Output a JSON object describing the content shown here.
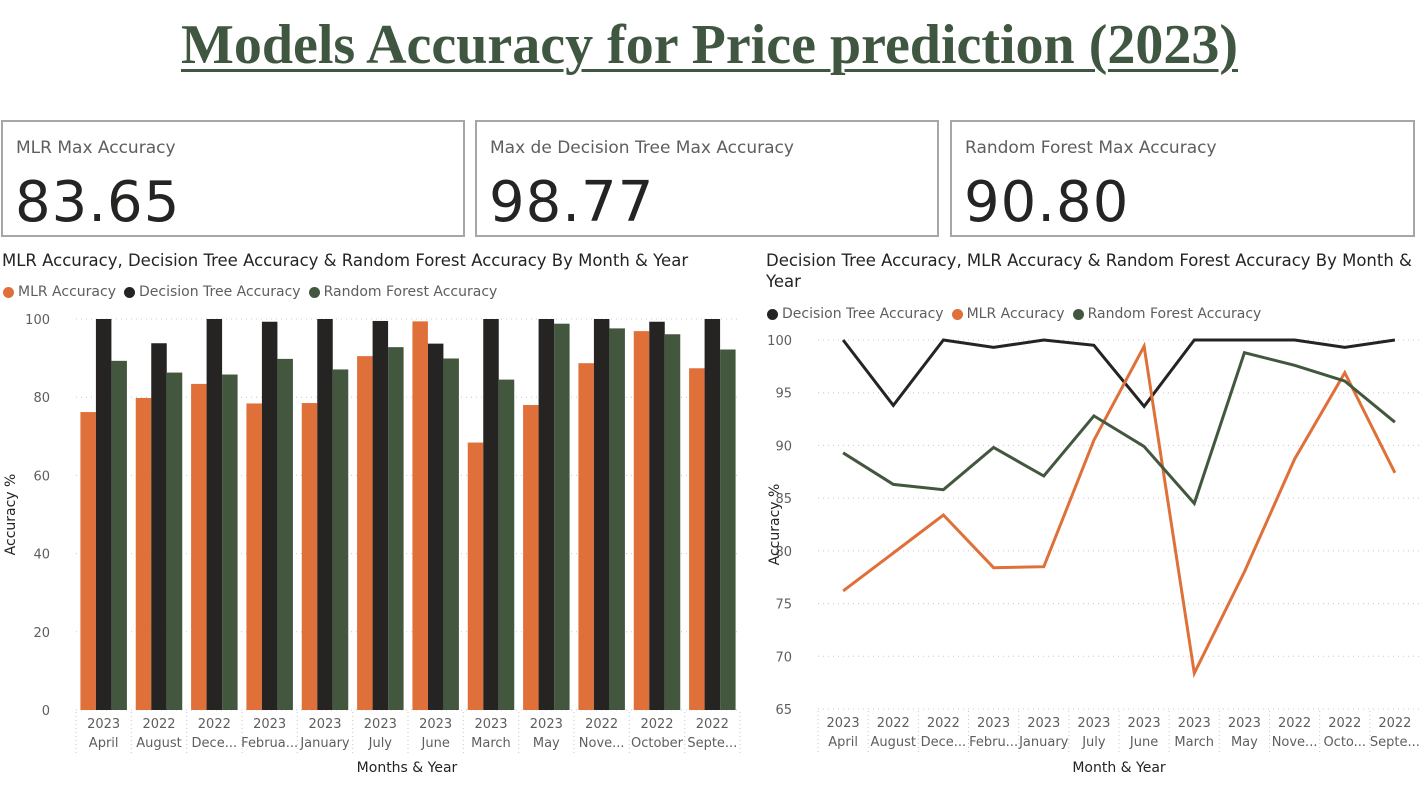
{
  "page": {
    "title": "Models Accuracy for Price prediction (2023)"
  },
  "cards": [
    {
      "label": "MLR Max Accuracy",
      "value": "83.65"
    },
    {
      "label": "Max de Decision Tree Max Accuracy",
      "value": "98.77"
    },
    {
      "label": "Random Forest Max Accuracy",
      "value": "90.80"
    }
  ],
  "colors": {
    "mlr": "#e0703a",
    "decision_tree": "#252423",
    "random_forest": "#43573f",
    "grid": "#c8c8c8"
  },
  "chart_data": [
    {
      "type": "bar",
      "title": "MLR Accuracy, Decision Tree Accuracy & Random Forest Accuracy By Month & Year",
      "xlabel": "Months & Year",
      "ylabel": "Accuracy %",
      "ylim": [
        0,
        100
      ],
      "yticks": [
        0,
        20,
        40,
        60,
        80,
        100
      ],
      "grid": true,
      "legend_position": "top-left",
      "categories": [
        {
          "year": "2023",
          "month": "April"
        },
        {
          "year": "2022",
          "month": "August"
        },
        {
          "year": "2022",
          "month": "Dece..."
        },
        {
          "year": "2023",
          "month": "Februa..."
        },
        {
          "year": "2023",
          "month": "January"
        },
        {
          "year": "2023",
          "month": "July"
        },
        {
          "year": "2023",
          "month": "June"
        },
        {
          "year": "2023",
          "month": "March"
        },
        {
          "year": "2023",
          "month": "May"
        },
        {
          "year": "2022",
          "month": "Nove..."
        },
        {
          "year": "2022",
          "month": "October"
        },
        {
          "year": "2022",
          "month": "Septe..."
        }
      ],
      "series": [
        {
          "name": "MLR Accuracy",
          "color": "#e0703a",
          "values": [
            76.2,
            79.8,
            83.4,
            78.4,
            78.5,
            90.5,
            99.4,
            68.4,
            78.0,
            88.7,
            96.9,
            87.4
          ]
        },
        {
          "name": "Decision Tree Accuracy",
          "color": "#252423",
          "values": [
            100,
            93.8,
            100,
            99.3,
            100,
            99.5,
            93.7,
            100,
            100,
            100,
            99.3,
            100
          ]
        },
        {
          "name": "Random Forest Accuracy",
          "color": "#43573f",
          "values": [
            89.3,
            86.3,
            85.8,
            89.8,
            87.1,
            92.8,
            89.9,
            84.5,
            98.8,
            97.6,
            96.1,
            92.2
          ]
        }
      ]
    },
    {
      "type": "line",
      "title": "Decision Tree Accuracy, MLR Accuracy & Random Forest Accuracy By Month &",
      "title_line2": "Year",
      "xlabel": "Month & Year",
      "ylabel": "Accuracy %",
      "ylim": [
        65,
        100
      ],
      "yticks": [
        65,
        70,
        75,
        80,
        85,
        90,
        95,
        100
      ],
      "grid": true,
      "legend_position": "top-left",
      "categories": [
        {
          "year": "2023",
          "month": "April"
        },
        {
          "year": "2022",
          "month": "August"
        },
        {
          "year": "2022",
          "month": "Dece..."
        },
        {
          "year": "2023",
          "month": "Febru..."
        },
        {
          "year": "2023",
          "month": "January"
        },
        {
          "year": "2023",
          "month": "July"
        },
        {
          "year": "2023",
          "month": "June"
        },
        {
          "year": "2023",
          "month": "March"
        },
        {
          "year": "2023",
          "month": "May"
        },
        {
          "year": "2022",
          "month": "Nove..."
        },
        {
          "year": "2022",
          "month": "Octo..."
        },
        {
          "year": "2022",
          "month": "Septe..."
        }
      ],
      "series": [
        {
          "name": "Decision Tree Accuracy",
          "color": "#252423",
          "values": [
            100,
            93.8,
            100,
            99.3,
            100,
            99.5,
            93.7,
            100,
            100,
            100,
            99.3,
            100
          ]
        },
        {
          "name": "MLR Accuracy",
          "color": "#e0703a",
          "values": [
            76.2,
            79.8,
            83.4,
            78.4,
            78.5,
            90.5,
            99.4,
            68.4,
            78.0,
            88.7,
            96.9,
            87.4
          ]
        },
        {
          "name": "Random Forest Accuracy",
          "color": "#43573f",
          "values": [
            89.3,
            86.3,
            85.8,
            89.8,
            87.1,
            92.8,
            89.9,
            84.5,
            98.8,
            97.6,
            96.1,
            92.2
          ]
        }
      ]
    }
  ]
}
